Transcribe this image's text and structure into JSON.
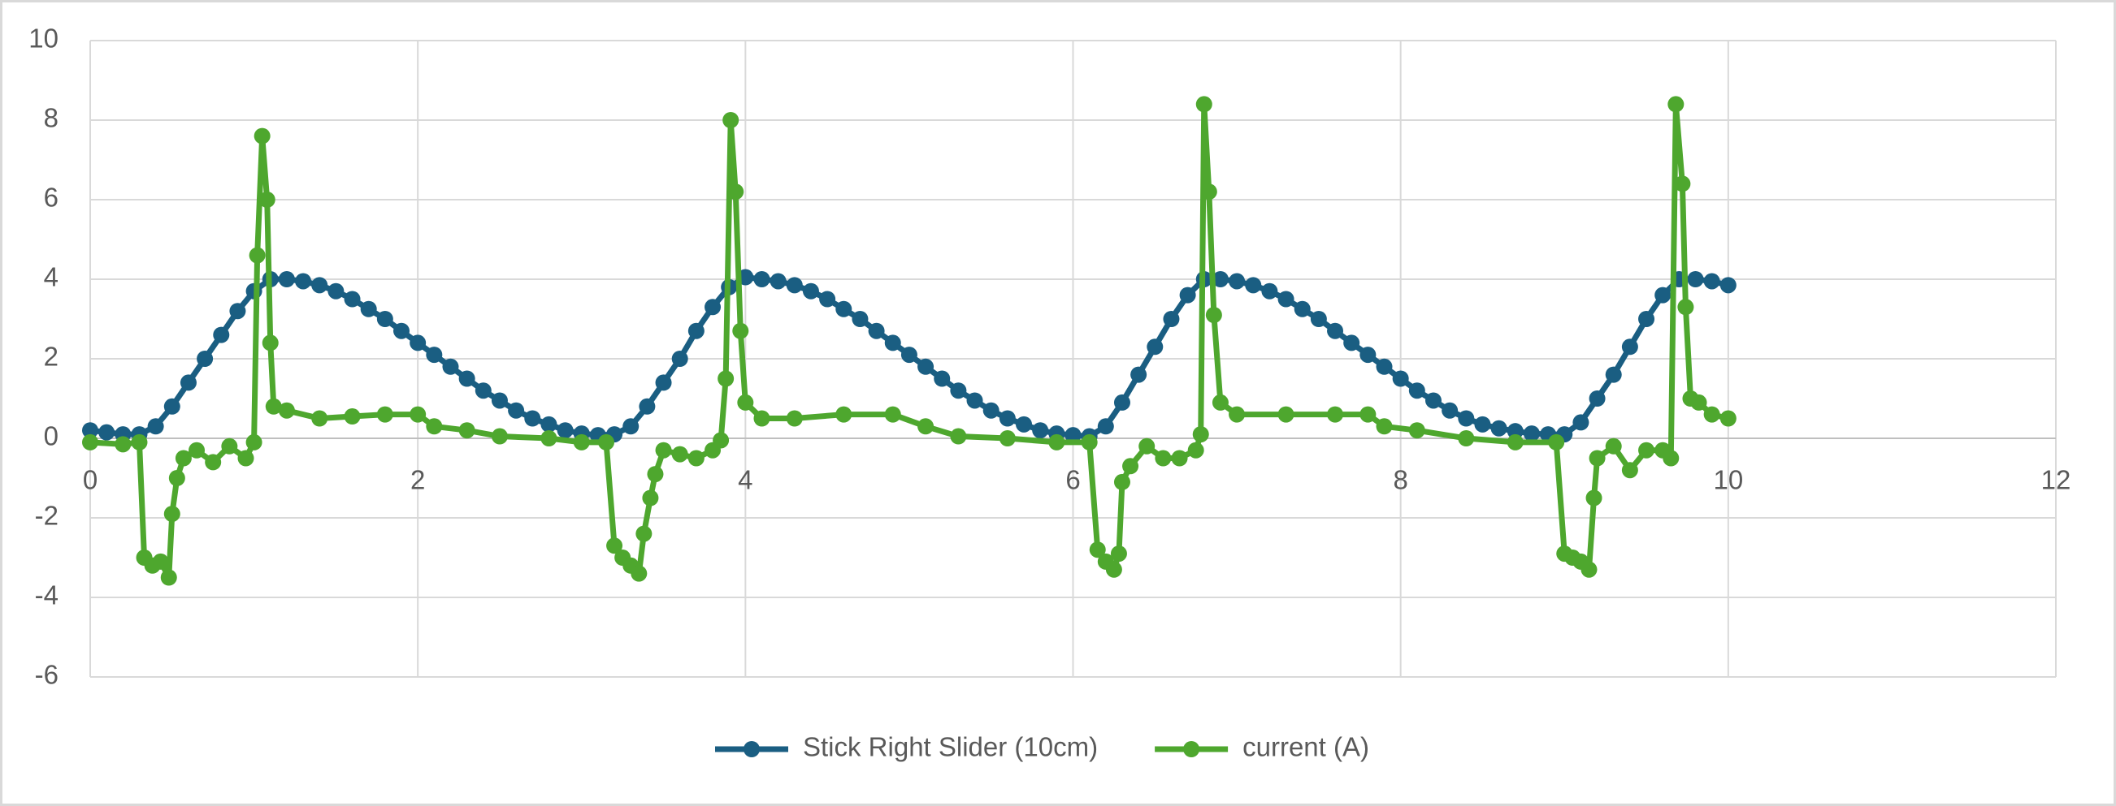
{
  "chart_data": {
    "type": "line",
    "xlim": [
      0,
      12
    ],
    "xticks": [
      0,
      2,
      4,
      6,
      8,
      10,
      12
    ],
    "ylim": [
      -6,
      10
    ],
    "yticks": [
      -6,
      -4,
      -2,
      0,
      2,
      4,
      6,
      8,
      10
    ],
    "grid": true,
    "legend": "bottom",
    "markers": true,
    "series": [
      {
        "name": "Stick Right Slider (10cm)",
        "color": "#1a5e82",
        "x": [
          0,
          0.1,
          0.2,
          0.3,
          0.4,
          0.5,
          0.6,
          0.7,
          0.8,
          0.9,
          1,
          1.1,
          1.2,
          1.3,
          1.4,
          1.5,
          1.6,
          1.7,
          1.8,
          1.9,
          2,
          2.1,
          2.2,
          2.3,
          2.4,
          2.5,
          2.6,
          2.7,
          2.8,
          2.9,
          3,
          3.1,
          3.2,
          3.3,
          3.4,
          3.5,
          3.6,
          3.7,
          3.8,
          3.9,
          4,
          4.1,
          4.2,
          4.3,
          4.4,
          4.5,
          4.6,
          4.7,
          4.8,
          4.9,
          5,
          5.1,
          5.2,
          5.3,
          5.4,
          5.5,
          5.6,
          5.7,
          5.8,
          5.9,
          6,
          6.1,
          6.2,
          6.3,
          6.4,
          6.5,
          6.6,
          6.7,
          6.8,
          6.9,
          7,
          7.1,
          7.2,
          7.3,
          7.4,
          7.5,
          7.6,
          7.7,
          7.8,
          7.9,
          8,
          8.1,
          8.2,
          8.3,
          8.4,
          8.5,
          8.6,
          8.7,
          8.8,
          8.9,
          9,
          9.1,
          9.2,
          9.3,
          9.4,
          9.5,
          9.6,
          9.7,
          9.8,
          9.9,
          10
        ],
        "values": [
          0.2,
          0.15,
          0.1,
          0.1,
          0.3,
          0.8,
          1.4,
          2.0,
          2.6,
          3.2,
          3.7,
          4.0,
          4.0,
          3.95,
          3.85,
          3.7,
          3.5,
          3.25,
          3.0,
          2.7,
          2.4,
          2.1,
          1.8,
          1.5,
          1.2,
          0.95,
          0.7,
          0.5,
          0.35,
          0.2,
          0.12,
          0.08,
          0.1,
          0.3,
          0.8,
          1.4,
          2.0,
          2.7,
          3.3,
          3.8,
          4.05,
          4.0,
          3.95,
          3.85,
          3.7,
          3.5,
          3.25,
          3.0,
          2.7,
          2.4,
          2.1,
          1.8,
          1.5,
          1.2,
          0.95,
          0.7,
          0.5,
          0.35,
          0.2,
          0.12,
          0.08,
          0.05,
          0.3,
          0.9,
          1.6,
          2.3,
          3.0,
          3.6,
          4.0,
          4.0,
          3.95,
          3.85,
          3.7,
          3.5,
          3.25,
          3.0,
          2.7,
          2.4,
          2.1,
          1.8,
          1.5,
          1.2,
          0.95,
          0.7,
          0.5,
          0.35,
          0.25,
          0.18,
          0.12,
          0.1,
          0.1,
          0.4,
          1.0,
          1.6,
          2.3,
          3.0,
          3.6,
          4.0,
          4.0,
          3.95,
          3.85
        ]
      },
      {
        "name": "current (A)",
        "color": "#4ea72e",
        "x": [
          0,
          0.2,
          0.3,
          0.33,
          0.38,
          0.43,
          0.48,
          0.5,
          0.53,
          0.57,
          0.65,
          0.75,
          0.85,
          0.95,
          1,
          1.02,
          1.05,
          1.08,
          1.1,
          1.12,
          1.2,
          1.4,
          1.6,
          1.8,
          2,
          2.1,
          2.3,
          2.5,
          2.8,
          3,
          3.15,
          3.2,
          3.25,
          3.3,
          3.35,
          3.38,
          3.42,
          3.45,
          3.5,
          3.6,
          3.7,
          3.8,
          3.85,
          3.88,
          3.91,
          3.94,
          3.97,
          4,
          4.1,
          4.3,
          4.6,
          4.9,
          5.1,
          5.3,
          5.6,
          5.9,
          6.1,
          6.15,
          6.2,
          6.25,
          6.28,
          6.3,
          6.35,
          6.45,
          6.55,
          6.65,
          6.75,
          6.78,
          6.8,
          6.83,
          6.86,
          6.9,
          7,
          7.3,
          7.6,
          7.8,
          7.9,
          8.1,
          8.4,
          8.7,
          8.95,
          9,
          9.05,
          9.1,
          9.15,
          9.18,
          9.2,
          9.3,
          9.4,
          9.5,
          9.6,
          9.65,
          9.68,
          9.72,
          9.74,
          9.77,
          9.82,
          9.9,
          10
        ],
        "values": [
          -0.1,
          -0.15,
          -0.1,
          -3.0,
          -3.2,
          -3.1,
          -3.5,
          -1.9,
          -1.0,
          -0.5,
          -0.3,
          -0.6,
          -0.2,
          -0.5,
          -0.1,
          4.6,
          7.6,
          6.0,
          2.4,
          0.8,
          0.7,
          0.5,
          0.55,
          0.6,
          0.6,
          0.3,
          0.2,
          0.05,
          0.0,
          -0.1,
          -0.1,
          -2.7,
          -3.0,
          -3.2,
          -3.4,
          -2.4,
          -1.5,
          -0.9,
          -0.3,
          -0.4,
          -0.5,
          -0.3,
          -0.05,
          1.5,
          8.0,
          6.2,
          2.7,
          0.9,
          0.5,
          0.5,
          0.6,
          0.6,
          0.3,
          0.05,
          0.0,
          -0.1,
          -0.1,
          -2.8,
          -3.1,
          -3.3,
          -2.9,
          -1.1,
          -0.7,
          -0.2,
          -0.5,
          -0.5,
          -0.3,
          0.1,
          8.4,
          6.2,
          3.1,
          0.9,
          0.6,
          0.6,
          0.6,
          0.6,
          0.3,
          0.2,
          0.0,
          -0.1,
          -0.1,
          -2.9,
          -3.0,
          -3.1,
          -3.3,
          -1.5,
          -0.5,
          -0.2,
          -0.8,
          -0.3,
          -0.3,
          -0.5,
          8.4,
          6.4,
          3.3,
          1.0,
          0.9,
          0.6,
          0.5
        ]
      }
    ]
  }
}
